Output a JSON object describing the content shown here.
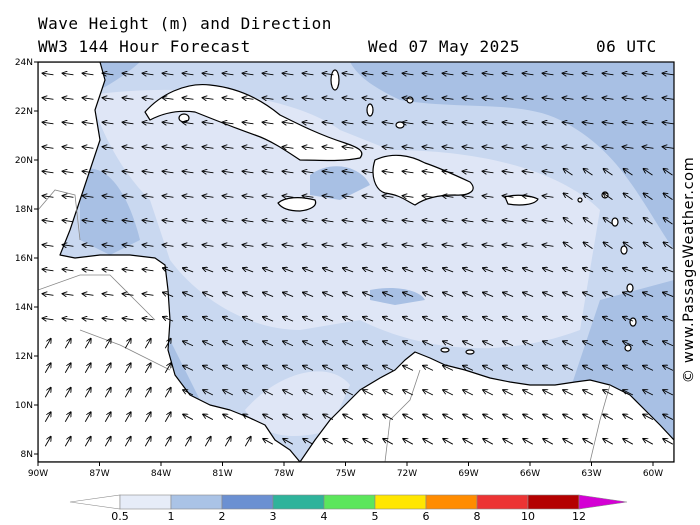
{
  "title": {
    "line1": "Wave Height (m) and Direction",
    "line2": "WW3 144 Hour Forecast",
    "date": "Wed 07 May 2025",
    "time": "06 UTC"
  },
  "credit": "© www.PassageWeather.com",
  "map": {
    "lat_range": [
      7.5,
      24
    ],
    "lon_range": [
      -90,
      -59.5
    ],
    "lat_ticks": [
      "24N",
      "22N",
      "20N",
      "18N",
      "16N",
      "14N",
      "12N",
      "10N",
      "8N"
    ],
    "lon_ticks": [
      "90W",
      "87W",
      "84W",
      "81W",
      "78W",
      "75W",
      "72W",
      "69W",
      "66W",
      "63W",
      "60W"
    ],
    "colors": {
      "land": "#ffffff",
      "lt_05": "#dfe6f6",
      "h_05_1": "#c9d8f0",
      "h_1_2": "#a8c0e4",
      "coast": "#000000"
    },
    "arrow_direction": "westward trade-wind swell across the Caribbean, turning northeast in the Pacific"
  },
  "colorbar": {
    "labels": [
      "0.5",
      "1",
      "2",
      "3",
      "4",
      "5",
      "6",
      "8",
      "10",
      "12"
    ],
    "colors": [
      "#ffffff",
      "#e6ecf8",
      "#aac3e6",
      "#6b90d2",
      "#2fb39b",
      "#5ce65c",
      "#ffe600",
      "#ff8c00",
      "#ec3434",
      "#b40000",
      "#d400d4"
    ]
  }
}
